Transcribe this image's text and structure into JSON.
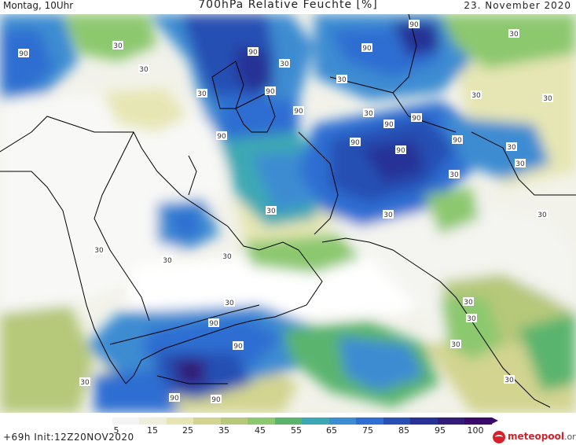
{
  "header": {
    "left": "Montag, 10Uhr",
    "title": "700hPa Relative Feuchte [%]",
    "right": "23. November 2020"
  },
  "footer": {
    "forecast_info": "+69h Init:12Z20NOV2020",
    "logo_main": "meteopool",
    "logo_suffix": ".org"
  },
  "colorbar": {
    "tick_labels": [
      "5",
      "15",
      "25",
      "35",
      "45",
      "55",
      "65",
      "75",
      "85",
      "95",
      "100"
    ],
    "colors": [
      "#ffffff",
      "#f4f4f4",
      "#eeeedc",
      "#e6e6b4",
      "#d2d490",
      "#b6c87a",
      "#8cc86e",
      "#5ab46e",
      "#3ca8b4",
      "#3c8cd2",
      "#2f6ed2",
      "#2850b4",
      "#283296",
      "#321e7a",
      "#3a0a6a"
    ]
  },
  "map": {
    "contour_labels": [
      "90",
      "90",
      "90",
      "90",
      "90",
      "90",
      "90",
      "90",
      "90",
      "90",
      "90",
      "90",
      "90",
      "90",
      "90",
      "90",
      "30",
      "30",
      "30",
      "30",
      "30",
      "30",
      "30",
      "30",
      "30",
      "30",
      "30",
      "30",
      "30",
      "30",
      "30",
      "30",
      "30",
      "30",
      "30",
      "30",
      "30",
      "30",
      "30",
      "30"
    ]
  }
}
